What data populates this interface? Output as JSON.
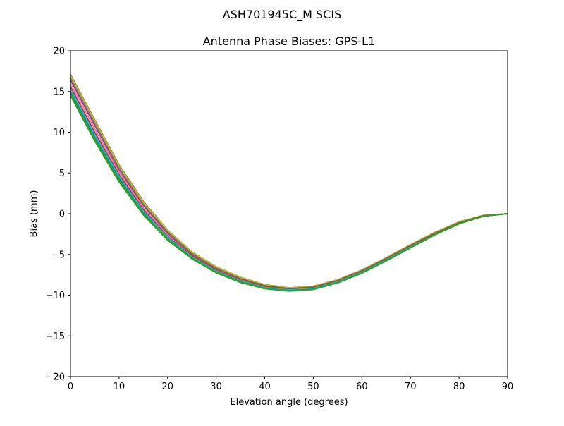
{
  "figure": {
    "suptitle": "ASH701945C_M    SCIS"
  },
  "chart_data": {
    "type": "line",
    "title": "Antenna Phase Biases: GPS-L1",
    "xlabel": "Elevation angle (degrees)",
    "ylabel": "Bias (mm)",
    "xlim": [
      0,
      90
    ],
    "ylim": [
      -20,
      20
    ],
    "xticks": [
      0,
      10,
      20,
      30,
      40,
      50,
      60,
      70,
      80,
      90
    ],
    "xtick_labels": [
      "0",
      "10",
      "20",
      "30",
      "40",
      "50",
      "60",
      "70",
      "80",
      "90"
    ],
    "yticks": [
      -20,
      -15,
      -10,
      -5,
      0,
      5,
      10,
      15,
      20
    ],
    "ytick_labels": [
      "−20",
      "−15",
      "−10",
      "−5",
      "0",
      "5",
      "10",
      "15",
      "20"
    ],
    "grid": false,
    "legend": "none",
    "x": [
      0,
      5,
      10,
      15,
      20,
      25,
      30,
      35,
      40,
      45,
      50,
      55,
      60,
      65,
      70,
      75,
      80,
      85,
      90
    ],
    "series": [
      {
        "color": "#8c564b",
        "values": [
          17.1,
          11.5,
          6.0,
          1.5,
          -2.0,
          -4.7,
          -6.5,
          -7.8,
          -8.7,
          -9.1,
          -8.9,
          -8.1,
          -6.9,
          -5.4,
          -3.8,
          -2.3,
          -1.0,
          -0.2,
          0.0
        ]
      },
      {
        "color": "#9467bd",
        "values": [
          16.6,
          11.0,
          5.6,
          1.1,
          -2.3,
          -4.9,
          -6.7,
          -8.0,
          -8.8,
          -9.2,
          -9.0,
          -8.2,
          -7.0,
          -5.5,
          -3.9,
          -2.4,
          -1.1,
          -0.25,
          0.0
        ]
      },
      {
        "color": "#e377c2",
        "values": [
          16.0,
          10.4,
          5.1,
          0.7,
          -2.6,
          -5.1,
          -6.9,
          -8.1,
          -8.9,
          -9.3,
          -9.1,
          -8.3,
          -7.1,
          -5.6,
          -4.0,
          -2.5,
          -1.15,
          -0.3,
          0.0
        ]
      },
      {
        "color": "#d62728",
        "values": [
          15.6,
          10.0,
          4.8,
          0.5,
          -2.8,
          -5.2,
          -7.0,
          -8.2,
          -9.0,
          -9.3,
          -9.1,
          -8.3,
          -7.1,
          -5.6,
          -4.0,
          -2.5,
          -1.15,
          -0.3,
          0.0
        ]
      },
      {
        "color": "#1f77b4",
        "values": [
          15.0,
          9.4,
          4.4,
          0.2,
          -3.0,
          -5.4,
          -7.1,
          -8.3,
          -9.1,
          -9.4,
          -9.2,
          -8.4,
          -7.2,
          -5.7,
          -4.1,
          -2.5,
          -1.2,
          -0.3,
          0.0
        ]
      },
      {
        "color": "#2ca02c",
        "values": [
          14.6,
          9.0,
          4.0,
          -0.1,
          -3.2,
          -5.5,
          -7.2,
          -8.4,
          -9.2,
          -9.5,
          -9.3,
          -8.5,
          -7.3,
          -5.8,
          -4.2,
          -2.6,
          -1.25,
          -0.3,
          0.0
        ]
      },
      {
        "color": "#7f7f7f",
        "values": [
          16.9,
          11.3,
          5.8,
          1.3,
          -2.1,
          -4.8,
          -6.6,
          -7.9,
          -8.7,
          -9.1,
          -8.9,
          -8.1,
          -6.9,
          -5.4,
          -3.8,
          -2.3,
          -1.0,
          -0.2,
          0.0
        ]
      },
      {
        "color": "#bcbd22",
        "values": [
          17.0,
          11.4,
          5.9,
          1.4,
          -2.0,
          -4.7,
          -6.5,
          -7.8,
          -8.7,
          -9.1,
          -8.9,
          -8.1,
          -6.9,
          -5.4,
          -3.8,
          -2.3,
          -1.0,
          -0.2,
          0.0
        ]
      },
      {
        "color": "#17becf",
        "values": [
          15.3,
          9.7,
          4.6,
          0.3,
          -2.9,
          -5.3,
          -7.05,
          -8.25,
          -9.05,
          -9.35,
          -9.15,
          -8.35,
          -7.15,
          -5.65,
          -4.05,
          -2.5,
          -1.2,
          -0.3,
          0.0
        ]
      },
      {
        "color": "#8c564b",
        "values": [
          16.4,
          10.8,
          5.4,
          1.0,
          -2.4,
          -5.0,
          -6.8,
          -8.0,
          -8.85,
          -9.2,
          -9.0,
          -8.2,
          -7.0,
          -5.5,
          -3.9,
          -2.4,
          -1.1,
          -0.25,
          0.0
        ]
      },
      {
        "color": "#2ca02c",
        "values": [
          14.8,
          9.2,
          4.2,
          0.0,
          -3.1,
          -5.45,
          -7.15,
          -8.35,
          -9.15,
          -9.45,
          -9.25,
          -8.45,
          -7.25,
          -5.75,
          -4.15,
          -2.55,
          -1.2,
          -0.3,
          0.0
        ]
      },
      {
        "color": "#2ca02c",
        "values": [
          14.5,
          8.9,
          3.9,
          -0.15,
          -3.25,
          -5.55,
          -7.25,
          -8.45,
          -9.2,
          -9.5,
          -9.3,
          -8.5,
          -7.3,
          -5.8,
          -4.2,
          -2.6,
          -1.25,
          -0.3,
          0.0
        ]
      }
    ]
  }
}
